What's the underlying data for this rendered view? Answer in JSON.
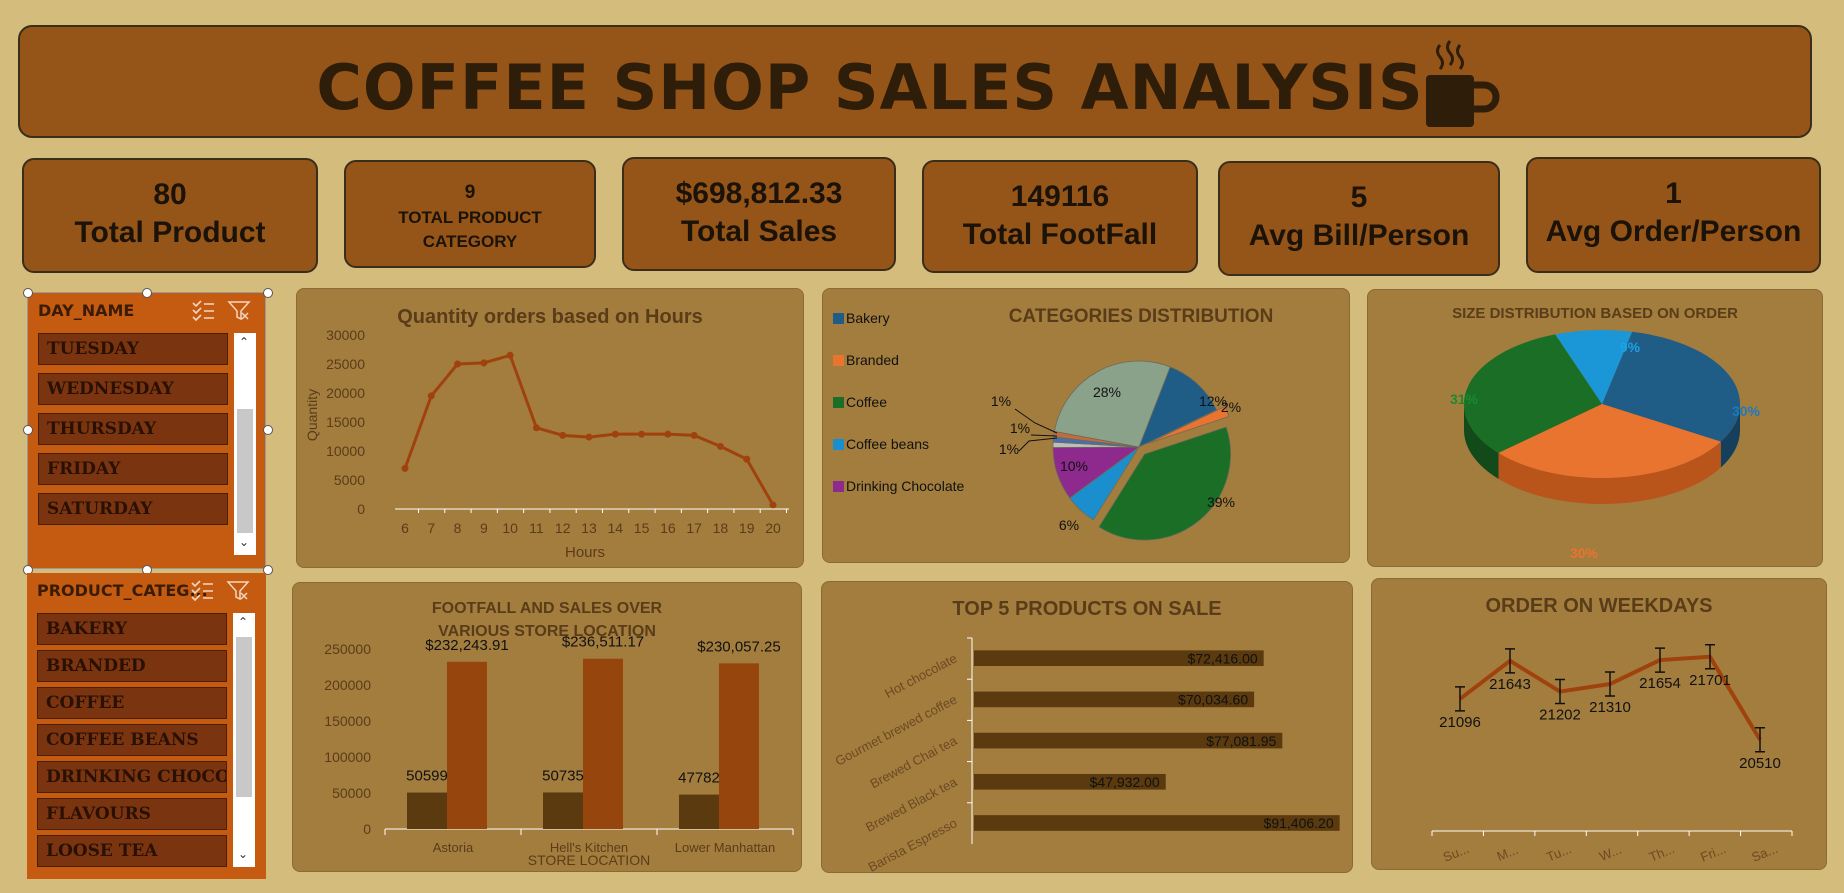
{
  "header": {
    "title": "COFFEE SHOP SALES ANALYSIS"
  },
  "kpis": [
    {
      "value": "80",
      "label": "Total Product"
    },
    {
      "value": "9",
      "label": "TOTAL PRODUCT CATEGORY"
    },
    {
      "value": "$698,812.33",
      "label": "Total Sales"
    },
    {
      "value": "149116",
      "label": "Total FootFall"
    },
    {
      "value": "5",
      "label": "Avg Bill/Person"
    },
    {
      "value": "1",
      "label": "Avg Order/Person"
    }
  ],
  "slicers": {
    "day": {
      "header": "DAY_NAME",
      "items": [
        "TUESDAY",
        "WEDNESDAY",
        "THURSDAY",
        "FRIDAY",
        "SATURDAY"
      ]
    },
    "category": {
      "header": "PRODUCT_CATEG...",
      "items": [
        "BAKERY",
        "BRANDED",
        "COFFEE",
        "COFFEE BEANS",
        "DRINKING CHOCO...",
        "FLAVOURS",
        "LOOSE TEA"
      ]
    }
  },
  "colors": {
    "background": "#D4BC7C",
    "banner": "#955518",
    "panel": "#A37D3E",
    "line": "#A0420E",
    "bar_dark": "#5A3A0E",
    "bar_orange": "#96460C",
    "slicer": "#C55A11"
  },
  "chart_data": [
    {
      "id": "hours",
      "type": "line",
      "title": "Quantity orders based on Hours",
      "xlabel": "Hours",
      "ylabel": "Quantity",
      "x": [
        6,
        7,
        8,
        9,
        10,
        11,
        12,
        13,
        14,
        15,
        16,
        17,
        18,
        19,
        20
      ],
      "values": [
        7000,
        19500,
        25000,
        25200,
        26500,
        14000,
        12700,
        12400,
        12900,
        12900,
        12900,
        12700,
        10800,
        8600,
        700
      ],
      "ylim": [
        0,
        30000
      ],
      "yticks": [
        0,
        5000,
        10000,
        15000,
        20000,
        25000,
        30000
      ]
    },
    {
      "id": "categories",
      "type": "pie",
      "title": "CATEGORIES DISTRIBUTION",
      "legend": [
        {
          "name": "Bakery",
          "color": "#1F5C86"
        },
        {
          "name": "Branded",
          "color": "#E8742F"
        },
        {
          "name": "Coffee",
          "color": "#1B6E26"
        },
        {
          "name": "Coffee beans",
          "color": "#1B8FCE"
        },
        {
          "name": "Drinking Chocolate",
          "color": "#8E2A8E"
        }
      ],
      "slices": [
        {
          "label": "12%",
          "value": 12,
          "color": "#1F5C86"
        },
        {
          "label": "2%",
          "value": 2,
          "color": "#E8742F"
        },
        {
          "label": "39%",
          "value": 39,
          "color": "#1B6E26"
        },
        {
          "label": "6%",
          "value": 6,
          "color": "#1B8FCE"
        },
        {
          "label": "10%",
          "value": 10,
          "color": "#8E2A8E"
        },
        {
          "label": "1%",
          "value": 1,
          "color": "#BDBDBD"
        },
        {
          "label": "1%",
          "value": 1,
          "color": "#4B6FA8"
        },
        {
          "label": "1%",
          "value": 1,
          "color": "#C26C3C"
        },
        {
          "label": "28%",
          "value": 28,
          "color": "#8BA28A"
        }
      ]
    },
    {
      "id": "size",
      "type": "pie",
      "title": "SIZE DISTRIBUTION BASED ON ORDER",
      "slices": [
        {
          "label": "30%",
          "value": 30,
          "color": "#1F5C86"
        },
        {
          "label": "30%",
          "value": 30,
          "color": "#E8742F"
        },
        {
          "label": "31%",
          "value": 31,
          "color": "#1B6E26"
        },
        {
          "label": "9%",
          "value": 9,
          "color": "#1B96D6"
        }
      ]
    },
    {
      "id": "stores",
      "type": "bar",
      "title": "FOOTFALL AND SALES OVER VARIOUS STORE LOCATION",
      "xlabel": "STORE LOCATION",
      "categories": [
        "Astoria",
        "Hell's Kitchen",
        "Lower Manhattan"
      ],
      "series": [
        {
          "values": [
            50599,
            50735,
            47782
          ],
          "labels": [
            "50599",
            "50735",
            "47782"
          ]
        },
        {
          "values": [
            232243.91,
            236511.17,
            230057.25
          ],
          "labels": [
            "$232,243.91",
            "$236,511.17",
            "$230,057.25"
          ]
        }
      ],
      "ylim": [
        0,
        250000
      ],
      "yticks": [
        0,
        50000,
        100000,
        150000,
        200000,
        250000
      ]
    },
    {
      "id": "top5",
      "type": "bar",
      "title": "TOP 5 PRODUCTS ON SALE",
      "categories": [
        "Hot chocolate",
        "Gourmet brewed coffee",
        "Brewed Chai tea",
        "Brewed Black tea",
        "Barista Espresso"
      ],
      "values": [
        72416.0,
        70034.6,
        77081.95,
        47932.0,
        91406.2
      ],
      "labels": [
        "$72,416.00",
        "$70,034.60",
        "$77,081.95",
        "$47,932.00",
        "$91,406.20"
      ],
      "xlim": [
        0,
        95000
      ]
    },
    {
      "id": "weekdays",
      "type": "line",
      "title": "ORDER ON WEEKDAYS",
      "categories": [
        "Su...",
        "M...",
        "Tu...",
        "W...",
        "Th...",
        "Fri...",
        "Sa..."
      ],
      "values": [
        21096,
        21643,
        21202,
        21310,
        21654,
        21701,
        20510
      ],
      "labels": [
        "21096",
        "21643",
        "21202",
        "21310",
        "21654",
        "21701",
        "20510"
      ],
      "ylim": [
        19200,
        22100
      ]
    }
  ]
}
